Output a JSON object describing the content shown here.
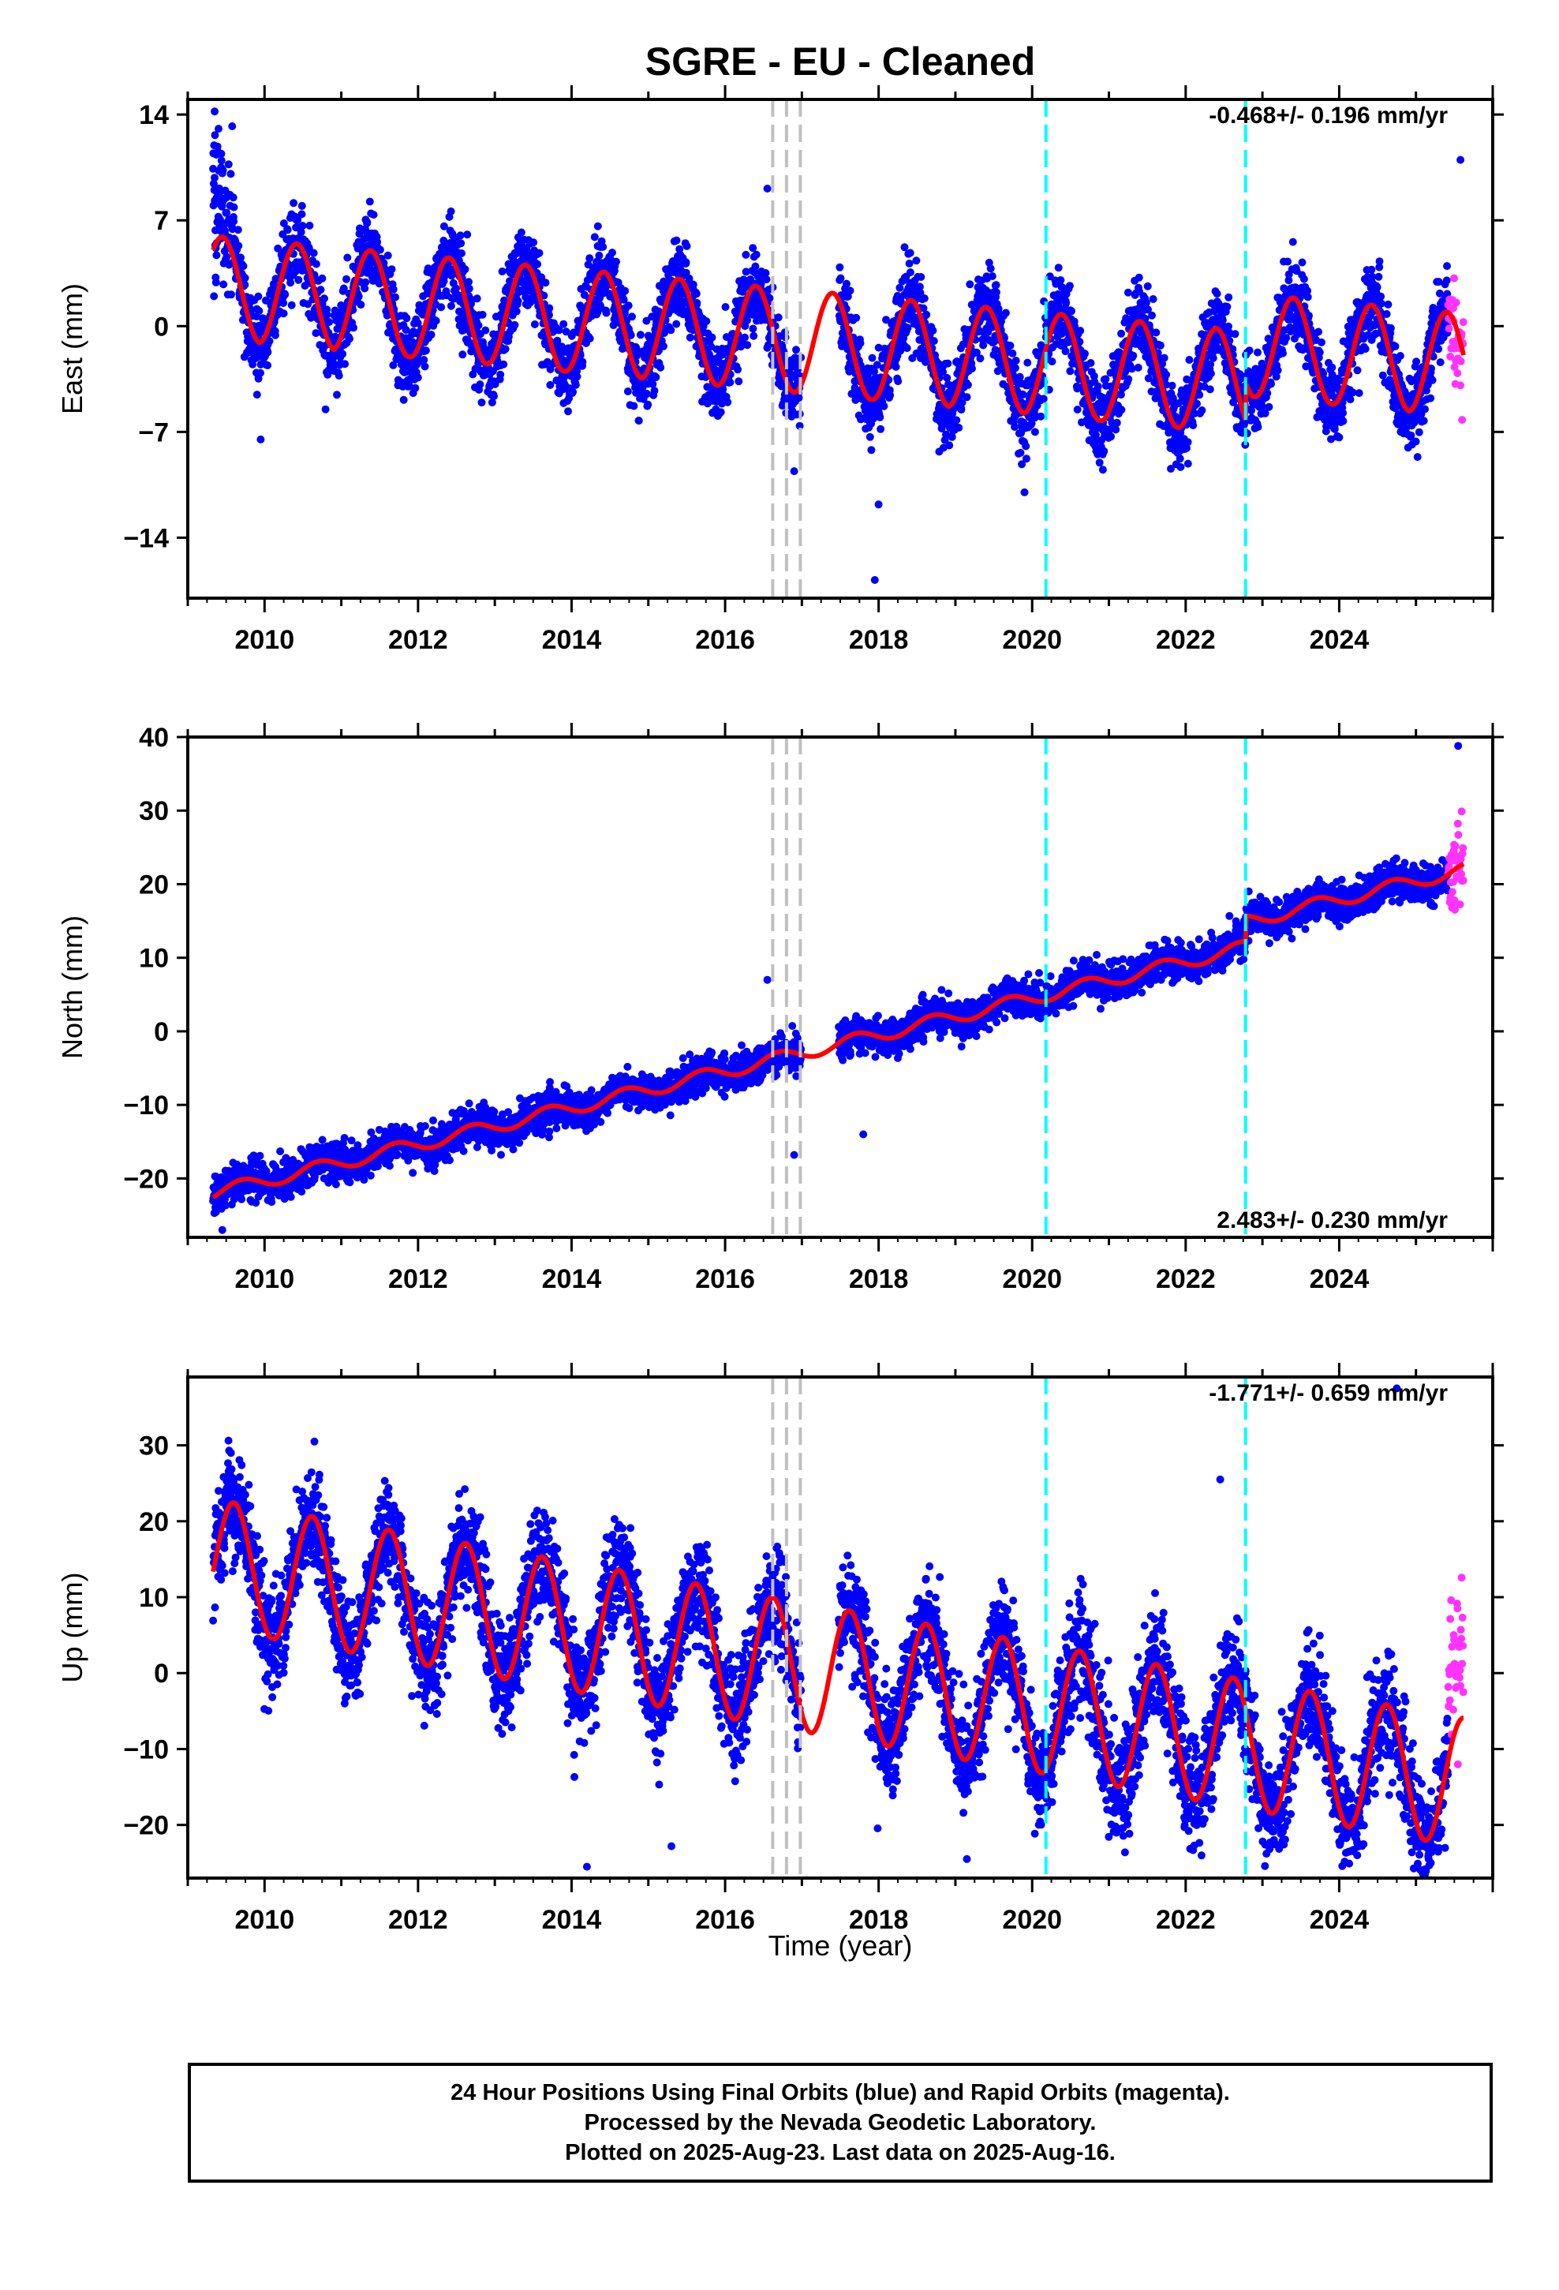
{
  "chart_data": {
    "type": "scatter",
    "title": "SGRE  - EU - Cleaned",
    "x_label": "Time (year)",
    "x_range": [
      2009.0,
      2026.0
    ],
    "x_ticks": [
      "2010",
      "2012",
      "2014",
      "2016",
      "2018",
      "2020",
      "2022",
      "2024"
    ],
    "grid": false,
    "legend": "none",
    "series_colors": {
      "final_orbits": "#0000ff",
      "rapid_orbits": "#ff33ff",
      "model_fit": "#ff0000"
    },
    "data_start": 2009.33,
    "data_end": 2025.62,
    "rapid_start": 2025.42,
    "equipment_changes": {
      "years": [
        2016.62,
        2016.8,
        2016.98
      ],
      "color": "#c0c0c0",
      "style": "dashed"
    },
    "earthquakes": {
      "years": [
        2020.18,
        2022.78
      ],
      "color": "#00ffff",
      "style": "dashed"
    },
    "gap": [
      2016.99,
      2017.48
    ],
    "panels": [
      {
        "name": "east",
        "ylabel": "East (mm)",
        "ylim": [
          -18,
          15
        ],
        "yticks": [
          "14",
          "7",
          "0",
          "-7",
          "-14"
        ],
        "rate_text": "-0.468+/- 0.196 mm/yr",
        "rate_position": "top-right",
        "rate": -0.468,
        "annual_amplitude": 3.4,
        "scatter_sigma": 1.3,
        "offsets": [
          {
            "year": 2022.78,
            "value": 2.5
          }
        ],
        "seasonal_peak_years": [
          2009.45,
          2010.42,
          2011.38,
          2012.4,
          2013.4,
          2014.42,
          2015.4,
          2016.4,
          2017.4,
          2018.42,
          2019.4,
          2020.38,
          2021.4,
          2022.4,
          2023.4,
          2024.42,
          2025.4
        ],
        "outliers": [
          [
            2009.35,
            14.2
          ],
          [
            2016.55,
            9.1
          ],
          [
            2017.95,
            -16.8
          ],
          [
            2025.58,
            11.0
          ],
          [
            2009.95,
            -7.5
          ],
          [
            2016.9,
            -9.6
          ],
          [
            2018.0,
            -11.8
          ],
          [
            2019.9,
            -11.0
          ]
        ]
      },
      {
        "name": "north",
        "ylabel": "North (mm)",
        "ylim": [
          -28,
          40
        ],
        "yticks": [
          "40",
          "30",
          "20",
          "10",
          "0",
          "-10",
          "-20"
        ],
        "rate_text": "2.483+/- 0.230 mm/yr",
        "rate_position": "bottom-right",
        "rate": 2.483,
        "annual_amplitude": 0.9,
        "scatter_sigma": 1.2,
        "offsets": [
          {
            "year": 2022.78,
            "value": 3.5
          }
        ],
        "seasonal_peak_years": [
          2009.7,
          2010.7,
          2011.7,
          2012.7,
          2013.7,
          2014.7,
          2015.7,
          2016.7,
          2017.7,
          2018.7,
          2019.7,
          2020.7,
          2021.7,
          2022.7,
          2023.7,
          2024.7
        ],
        "outliers": [
          [
            2009.45,
            -27.0
          ],
          [
            2016.9,
            -16.8
          ],
          [
            2017.8,
            -14.0
          ],
          [
            2016.55,
            7.0
          ],
          [
            2025.55,
            38.8
          ]
        ]
      },
      {
        "name": "up",
        "ylabel": "Up (mm)",
        "ylim": [
          -27,
          39
        ],
        "yticks": [
          "30",
          "20",
          "10",
          "0",
          "-10",
          "-20"
        ],
        "rate_text": "-1.771+/- 0.659 mm/yr",
        "rate_position": "top-right",
        "rate": -1.771,
        "annual_amplitude": 8.5,
        "scatter_sigma": 3.6,
        "offsets": [],
        "seasonal_peak_years": [
          2009.6,
          2010.62,
          2011.62,
          2012.62,
          2013.62,
          2014.62,
          2015.62,
          2016.62,
          2017.62,
          2018.62,
          2019.62,
          2020.62,
          2021.62,
          2022.62,
          2023.62,
          2024.62,
          2025.62
        ],
        "outliers": [
          [
            2010.65,
            30.5
          ],
          [
            2014.2,
            -25.5
          ],
          [
            2019.15,
            -24.5
          ],
          [
            2022.45,
            25.5
          ],
          [
            2024.75,
            37.5
          ],
          [
            2015.3,
            -22.8
          ]
        ]
      }
    ]
  },
  "footer": {
    "line1": "24 Hour Positions Using Final Orbits (blue) and Rapid Orbits (magenta).",
    "line2": "Processed by the Nevada Geodetic Laboratory.",
    "line3": "Plotted on 2025-Aug-23. Last data on 2025-Aug-16."
  }
}
